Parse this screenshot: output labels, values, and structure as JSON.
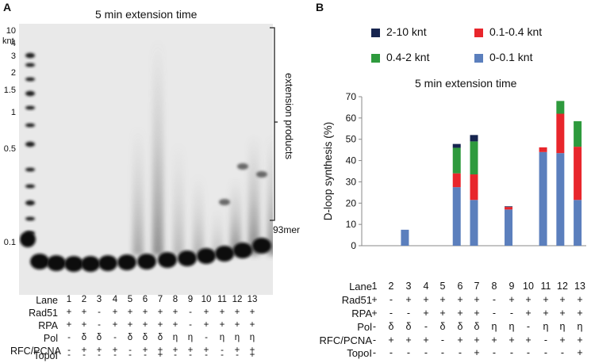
{
  "panel_a": {
    "letter": "A",
    "title": "5 min extension time",
    "ladder_unit": "knt",
    "ladder": [
      "10",
      "4",
      "3",
      "2",
      "1.5",
      "1",
      "0.5",
      "0.1"
    ],
    "bracket_label": "extension products",
    "marker_label": "93mer",
    "gel_lanes": [
      "1",
      "2",
      "3",
      "4",
      "5",
      "6",
      "7",
      "8",
      "9",
      "10",
      "11",
      "12",
      "13"
    ]
  },
  "condition_labels": [
    "Lane",
    "Rad51",
    "RPA",
    "Pol",
    "RFC/PCNA",
    "TopoI"
  ],
  "conditions": [
    [
      "1",
      "2",
      "3",
      "4",
      "5",
      "6",
      "7",
      "8",
      "9",
      "10",
      "11",
      "12",
      "13"
    ],
    [
      "+",
      "+",
      "-",
      "+",
      "+",
      "+",
      "+",
      "+",
      "-",
      "+",
      "+",
      "+",
      "+"
    ],
    [
      "+",
      "+",
      "-",
      "+",
      "+",
      "+",
      "+",
      "+",
      "-",
      "+",
      "+",
      "+",
      "+"
    ],
    [
      "-",
      "δ",
      "δ",
      "-",
      "δ",
      "δ",
      "δ",
      "η",
      "η",
      "-",
      "η",
      "η",
      "η"
    ],
    [
      "-",
      "+",
      "+",
      "+",
      "-",
      "+",
      "+",
      "+",
      "+",
      "+",
      "-",
      "+",
      "+"
    ],
    [
      "-",
      "-",
      "-",
      "-",
      "-",
      "-",
      "+",
      "-",
      "-",
      "-",
      "-",
      "-",
      "+"
    ]
  ],
  "panel_b": {
    "letter": "B",
    "legend": [
      {
        "label": "2-10 knt",
        "color": "#17254f"
      },
      {
        "label": "0.1-0.4 knt",
        "color": "#e8262c"
      },
      {
        "label": "0.4-2 knt",
        "color": "#2e9a3d"
      },
      {
        "label": "0-0.1 knt",
        "color": "#5b7fbd"
      }
    ]
  },
  "conditions_b": [
    [
      "1",
      "2",
      "3",
      "4",
      "5",
      "6",
      "7",
      "8",
      "9",
      "10",
      "11",
      "12",
      "13"
    ],
    [
      "+",
      "-",
      "+",
      "+",
      "+",
      "+",
      "+",
      "-",
      "+",
      "+",
      "+",
      "+",
      "+"
    ],
    [
      "+",
      "-",
      "-",
      "+",
      "+",
      "+",
      "+",
      "-",
      "-",
      "+",
      "+",
      "+",
      "+"
    ],
    [
      "-",
      "δ",
      "δ",
      "-",
      "δ",
      "δ",
      "δ",
      "η",
      "η",
      "-",
      "η",
      "η",
      "η"
    ],
    [
      "-",
      "+",
      "+",
      "+",
      "-",
      "+",
      "+",
      "+",
      "+",
      "+",
      "-",
      "+",
      "+"
    ],
    [
      "-",
      "-",
      "-",
      "-",
      "-",
      "-",
      "+",
      "-",
      "-",
      "-",
      "-",
      "-",
      "+"
    ]
  ],
  "chart_data": {
    "type": "bar",
    "stacked": true,
    "title": "5 min extension time",
    "xlabel": "",
    "ylabel": "D-loop synthesis (%)",
    "ylim": [
      0,
      70
    ],
    "yticks": [
      0,
      10,
      20,
      30,
      40,
      50,
      60,
      70
    ],
    "categories": [
      "1",
      "2",
      "3",
      "4",
      "5",
      "6",
      "7",
      "8",
      "9",
      "10",
      "11",
      "12",
      "13"
    ],
    "series": [
      {
        "name": "0-0.1 knt",
        "color": "#5b7fbd",
        "values": [
          0,
          0,
          7.5,
          0,
          0,
          27.5,
          21.5,
          0,
          17,
          0,
          44,
          43.5,
          21.5
        ]
      },
      {
        "name": "0.1-0.4 knt",
        "color": "#e8262c",
        "values": [
          0,
          0,
          0,
          0,
          0,
          6.5,
          12,
          0,
          1.2,
          0,
          2.2,
          18.5,
          25
        ]
      },
      {
        "name": "0.4-2 knt",
        "color": "#2e9a3d",
        "values": [
          0,
          0,
          0,
          0,
          0,
          12,
          15.5,
          0,
          0,
          0,
          0,
          6,
          12
        ]
      },
      {
        "name": "2-10 knt",
        "color": "#17254f",
        "values": [
          0,
          0,
          0,
          0,
          0,
          1.8,
          3,
          0,
          0.3,
          0,
          0,
          0,
          0
        ]
      }
    ]
  }
}
